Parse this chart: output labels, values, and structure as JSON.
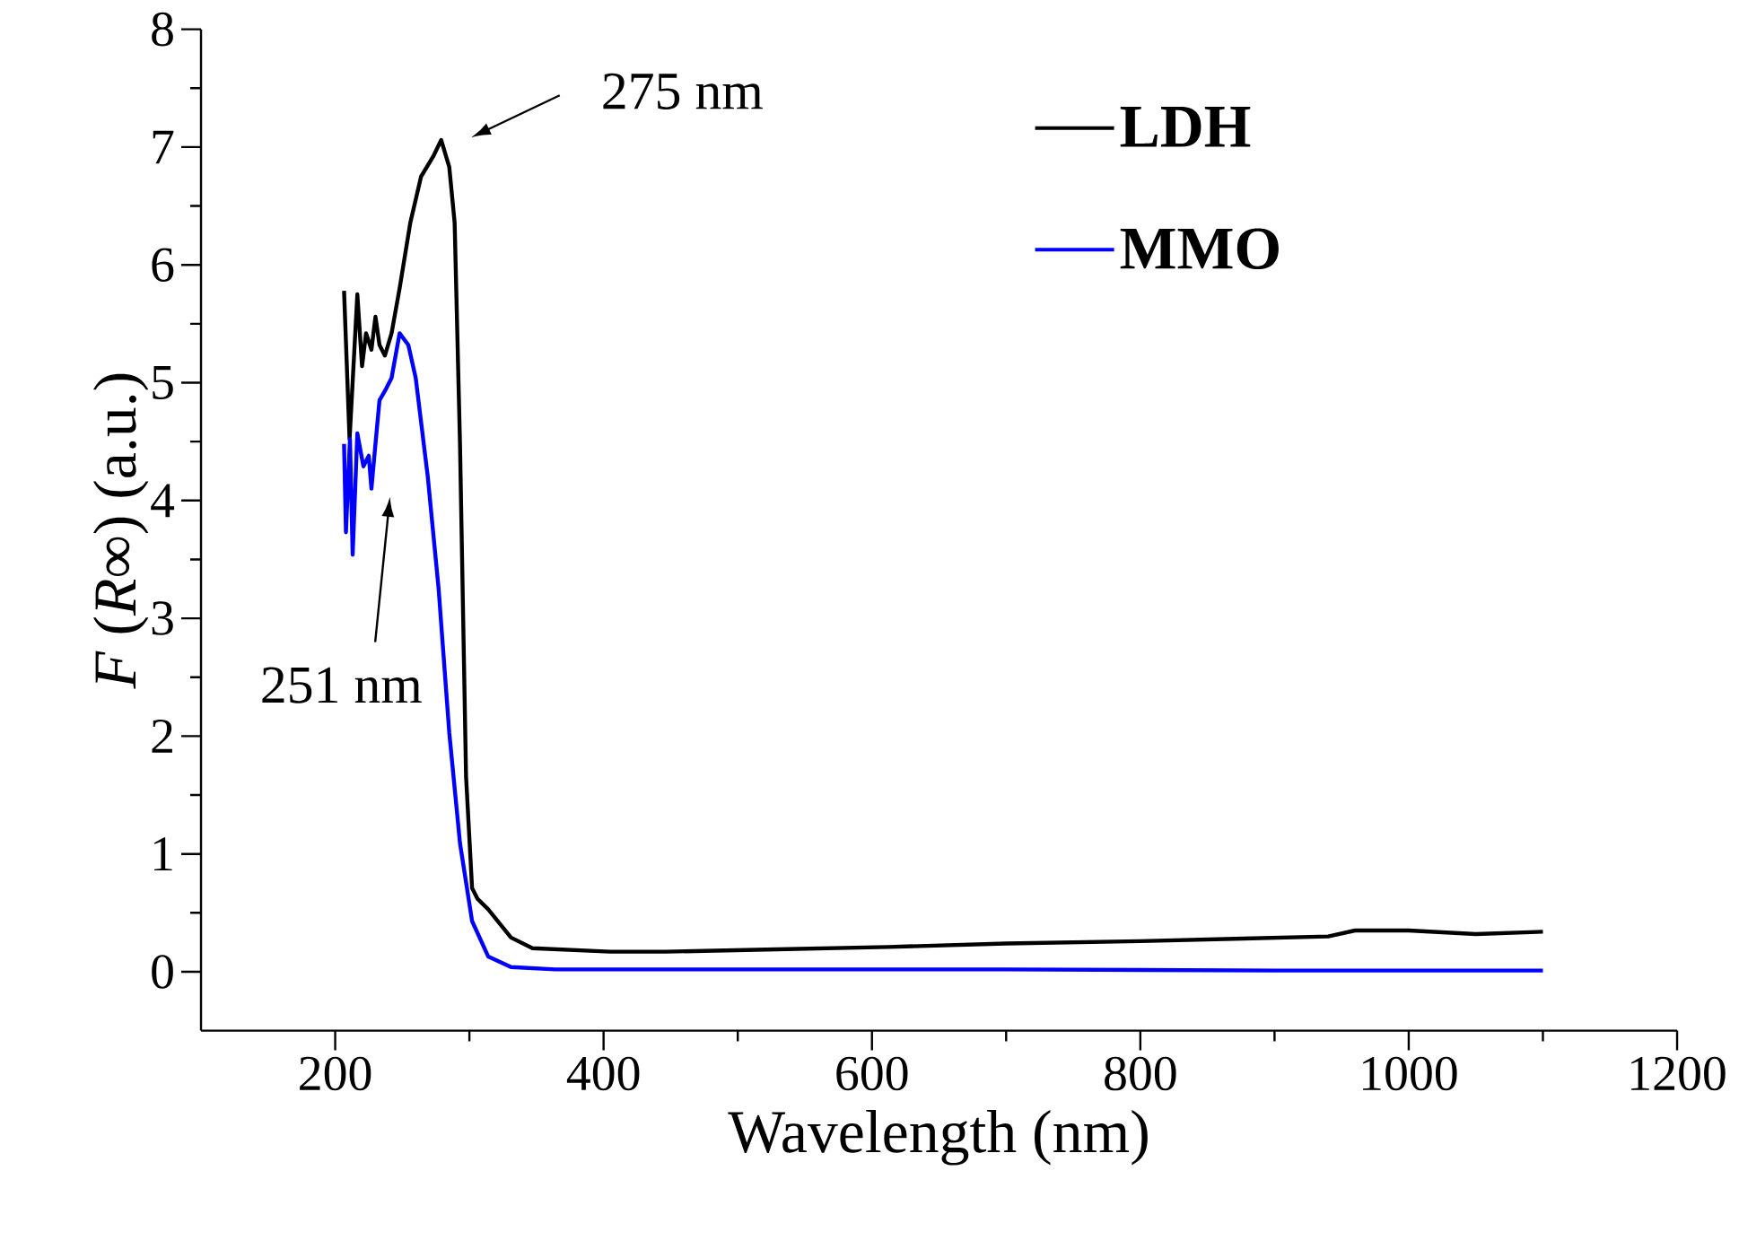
{
  "chart_data": {
    "type": "line",
    "xlabel": "Wavelength (nm)",
    "ylabel": "*F* (*R*∞) (a.u.)",
    "xlim": [
      100,
      1200
    ],
    "ylim": [
      -0.5,
      8
    ],
    "xticks": [
      200,
      400,
      600,
      800,
      1000,
      1200
    ],
    "yticks": [
      0,
      1,
      2,
      3,
      4,
      5,
      6,
      7,
      8
    ],
    "legend": "top right",
    "line_style": "solid",
    "marker": "none",
    "series": [
      {
        "name": "LDH",
        "color": "#000000",
        "x": [
          206.6,
          210.7,
          216.5,
          220,
          223,
          227,
          230,
          233,
          237,
          242,
          248,
          256,
          264,
          273,
          279,
          285,
          289,
          293,
          297.5,
          302,
          306,
          314,
          331,
          347,
          405,
          446,
          529,
          612,
          700,
          800,
          870,
          940,
          960,
          1000,
          1050,
          1100
        ],
        "values": [
          5.78,
          4.52,
          5.75,
          5.14,
          5.42,
          5.28,
          5.56,
          5.32,
          5.23,
          5.42,
          5.8,
          6.36,
          6.75,
          6.92,
          7.06,
          6.83,
          6.36,
          4.48,
          1.66,
          0.71,
          0.62,
          0.53,
          0.29,
          0.2,
          0.17,
          0.17,
          0.19,
          0.21,
          0.24,
          0.26,
          0.28,
          0.3,
          0.35,
          0.35,
          0.32,
          0.34
        ]
      },
      {
        "name": "MMO",
        "color": "#0000ff",
        "x": [
          206.6,
          208,
          211,
          213,
          216.5,
          221,
          225,
          227,
          230,
          233,
          238,
          242,
          248,
          254.5,
          260,
          269,
          277,
          285,
          293,
          302,
          314,
          331,
          364,
          500,
          700,
          900,
          1100
        ],
        "values": [
          4.48,
          3.73,
          4.52,
          3.54,
          4.57,
          4.29,
          4.38,
          4.1,
          4.48,
          4.85,
          4.95,
          5.04,
          5.42,
          5.32,
          5.04,
          4.2,
          3.26,
          2.03,
          1.09,
          0.43,
          0.13,
          0.04,
          0.02,
          0.02,
          0.02,
          0.01,
          0.01
        ]
      }
    ],
    "annotations": [
      "275 nm",
      "251 nm"
    ]
  }
}
